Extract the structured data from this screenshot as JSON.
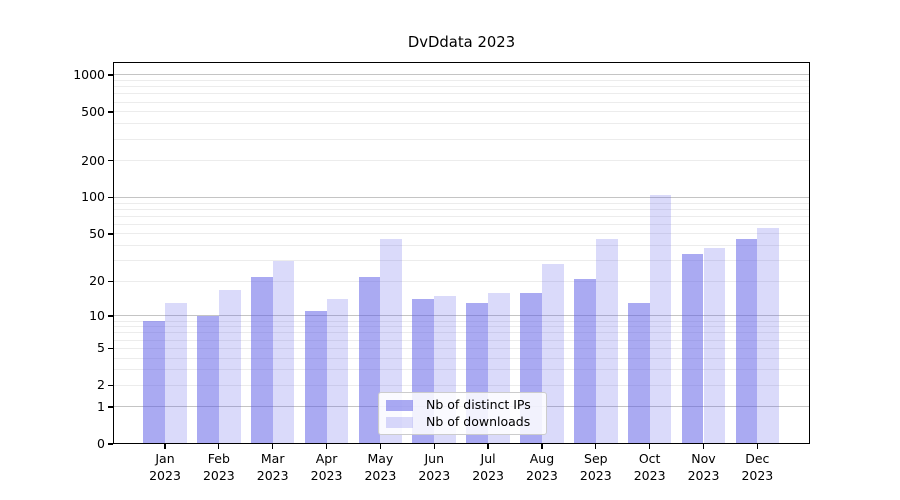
{
  "chart_data": {
    "type": "bar",
    "title": "DvDdata 2023",
    "scale": "log1p",
    "grid": "major+minor horizontal",
    "legend_position": "lower center",
    "categories": [
      "Jan",
      "Feb",
      "Mar",
      "Apr",
      "May",
      "Jun",
      "Jul",
      "Aug",
      "Sep",
      "Oct",
      "Nov",
      "Dec"
    ],
    "category_year": "2023",
    "series": [
      {
        "name": "Nb of distinct IPs",
        "color": "rgba(85,85,230,0.50)",
        "values": [
          9,
          10,
          22,
          11,
          22,
          14,
          13,
          16,
          21,
          13,
          34,
          45
        ]
      },
      {
        "name": "Nb of downloads",
        "color": "rgba(85,85,230,0.22)",
        "values": [
          13,
          17,
          30,
          14,
          45,
          15,
          16,
          28,
          45,
          105,
          38,
          56
        ]
      }
    ],
    "yticks": [
      0,
      1,
      2,
      5,
      10,
      20,
      50,
      100,
      200,
      500,
      1000
    ],
    "ylim": [
      0,
      1280
    ],
    "colors": {
      "major_grid": "#c4c4c4",
      "minor_grid": "#ececec",
      "axis": "#000000",
      "background": "#ffffff"
    }
  }
}
